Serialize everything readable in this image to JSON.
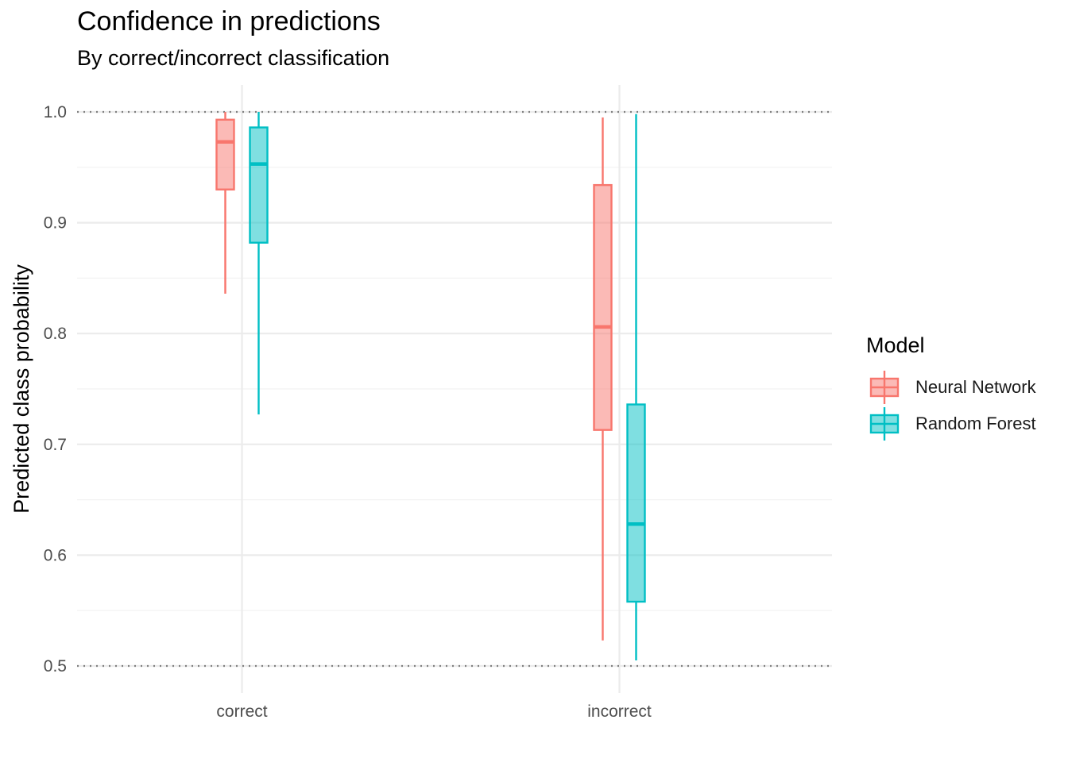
{
  "chart_data": {
    "type": "boxplot",
    "title": "Confidence in predictions",
    "subtitle": "By correct/incorrect classification",
    "xlabel": "",
    "ylabel": "Predicted class probability",
    "ylim": [
      0.475,
      1.025
    ],
    "y_ticks": [
      0.5,
      0.6,
      0.7,
      0.8,
      0.9,
      1.0
    ],
    "y_tick_labels": [
      "0.5",
      "0.6",
      "0.7",
      "0.8",
      "0.9",
      "1.0"
    ],
    "reference_lines": [
      0.5,
      1.0
    ],
    "categories": [
      "correct",
      "incorrect"
    ],
    "grid": true,
    "legend": {
      "title": "Model",
      "position": "right"
    },
    "series": [
      {
        "name": "Neural Network",
        "color": "#F8766D",
        "boxes": [
          {
            "category": "correct",
            "min": 0.836,
            "q1": 0.93,
            "median": 0.973,
            "q3": 0.993,
            "max": 1.0
          },
          {
            "category": "incorrect",
            "min": 0.523,
            "q1": 0.713,
            "median": 0.806,
            "q3": 0.934,
            "max": 0.995
          }
        ]
      },
      {
        "name": "Random Forest",
        "color": "#00BFC4",
        "boxes": [
          {
            "category": "correct",
            "min": 0.727,
            "q1": 0.882,
            "median": 0.953,
            "q3": 0.986,
            "max": 1.0
          },
          {
            "category": "incorrect",
            "min": 0.505,
            "q1": 0.558,
            "median": 0.628,
            "q3": 0.736,
            "max": 0.998
          }
        ]
      }
    ]
  }
}
